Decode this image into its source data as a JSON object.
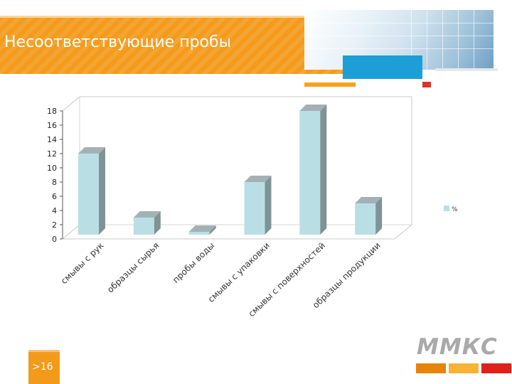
{
  "slide": {
    "title": "Несоответствующие пробы",
    "page_number": ">16",
    "logo_text": "ММКС"
  },
  "colors": {
    "banner": "#f59a1a",
    "accent_blue": "#1b9fd6",
    "accent_red": "#e0312a",
    "bar_front": "#b9dfe4",
    "bar_side": "#7f9397",
    "bar_top": "#a4b1b4"
  },
  "chart_data": {
    "type": "bar",
    "style": "3d",
    "categories": [
      "смывы с рук",
      "образцы сырья",
      "пробы воды",
      "смывы с упаковки",
      "смывы с поверхностей",
      "образцы продукции"
    ],
    "series": [
      {
        "name": "%",
        "values": [
          12,
          3,
          1,
          8,
          18,
          5
        ]
      }
    ],
    "ylim": [
      0,
      18
    ],
    "yticks": [
      0,
      2,
      4,
      6,
      8,
      10,
      12,
      14,
      16,
      18
    ],
    "grid": false,
    "legend": "right"
  }
}
